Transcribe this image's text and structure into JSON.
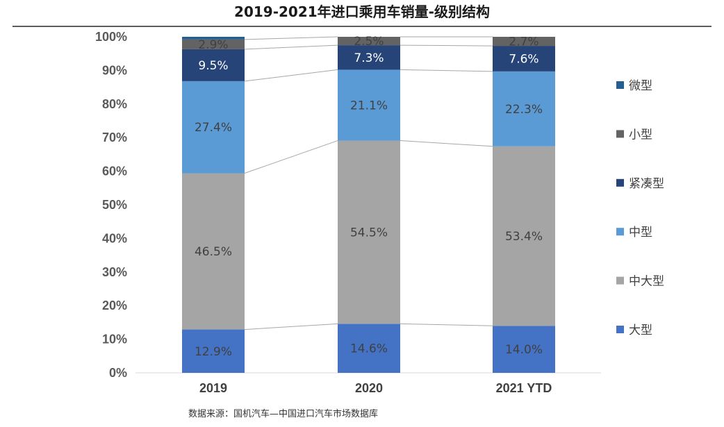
{
  "chart_data": {
    "type": "bar",
    "stacked": true,
    "title": "2019-2021年进口乘用车销量-级别结构",
    "categories": [
      "2019",
      "2020",
      "2021 YTD"
    ],
    "series": [
      {
        "name": "大型",
        "values": [
          12.9,
          14.6,
          14.0
        ],
        "color": "#4472C4",
        "label_color": "#404040"
      },
      {
        "name": "中大型",
        "values": [
          46.5,
          54.5,
          53.4
        ],
        "color": "#A5A5A5",
        "label_color": "#404040"
      },
      {
        "name": "中型",
        "values": [
          27.4,
          21.1,
          22.3
        ],
        "color": "#5B9BD5",
        "label_color": "#404040"
      },
      {
        "name": "紧凑型",
        "values": [
          9.5,
          7.3,
          7.6
        ],
        "color": "#264478",
        "label_color": "#ffffff"
      },
      {
        "name": "小型",
        "values": [
          2.9,
          2.5,
          2.7
        ],
        "color": "#636363",
        "label_color": "#404040"
      },
      {
        "name": "微型",
        "values": [
          0.8,
          0.0,
          0.0
        ],
        "color": "#255E91",
        "label_color": "#404040",
        "show_labels": false
      }
    ],
    "labels": [
      [
        "12.9%",
        "14.6%",
        "14.0%"
      ],
      [
        "46.5%",
        "54.5%",
        "53.4%"
      ],
      [
        "27.4%",
        "21.1%",
        "22.3%"
      ],
      [
        "9.5%",
        "7.3%",
        "7.6%"
      ],
      [
        "2.9%",
        "2.5%",
        "2.7%"
      ],
      [
        "",
        "",
        ""
      ]
    ],
    "ylim": [
      0,
      100
    ],
    "yticks": [
      "0%",
      "10%",
      "20%",
      "30%",
      "40%",
      "50%",
      "60%",
      "70%",
      "80%",
      "90%",
      "100%"
    ],
    "legend_order": [
      "微型",
      "小型",
      "紧凑型",
      "中型",
      "中大型",
      "大型"
    ],
    "legend_position": "right",
    "series_lines": true,
    "grid": false
  },
  "source_note": "数据来源：国机汽车—中国进口汽车市场数据库"
}
